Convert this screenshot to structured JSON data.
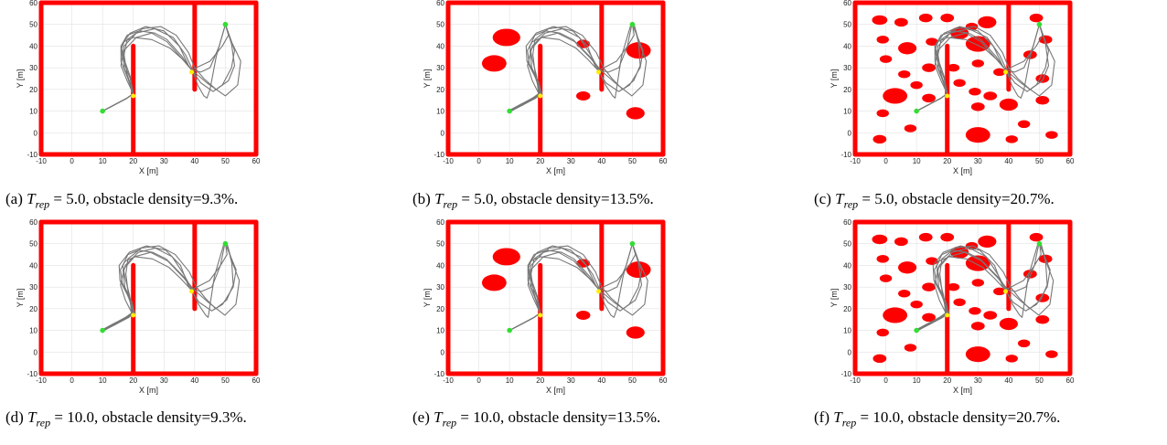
{
  "figure": {
    "panels": [
      {
        "caption_label": "(a)",
        "caption_var": "T",
        "caption_sub": "rep",
        "caption_value": "= 5.0",
        "caption_rest": ", obstacle density=9.3%.",
        "trajectories": 6
      },
      {
        "caption_label": "(b)",
        "caption_var": "T",
        "caption_sub": "rep",
        "caption_value": "= 5.0",
        "caption_rest": ", obstacle density=13.5%.",
        "trajectories": 6
      },
      {
        "caption_label": "(c)",
        "caption_var": "T",
        "caption_sub": "rep",
        "caption_value": "= 5.0",
        "caption_rest": ", obstacle density=20.7%.",
        "trajectories": 6
      },
      {
        "caption_label": "(d)",
        "caption_var": "T",
        "caption_sub": "rep",
        "caption_value": "= 10.0",
        "caption_rest": ", obstacle density=9.3%.",
        "trajectories": 6
      },
      {
        "caption_label": "(e)",
        "caption_var": "T",
        "caption_sub": "rep",
        "caption_value": "= 10.0",
        "caption_rest": ", obstacle density=13.5%.",
        "trajectories": 6
      },
      {
        "caption_label": "(f)",
        "caption_var": "T",
        "caption_sub": "rep",
        "caption_value": "= 10.0",
        "caption_rest": ", obstacle density=20.7%.",
        "trajectories": 6
      }
    ]
  },
  "chart_data": {
    "type": "scatter",
    "xlabel": "X [m]",
    "ylabel": "Y [m]",
    "xlim": [
      -10,
      60
    ],
    "ylim": [
      -10,
      60
    ],
    "xticks": [
      -10,
      0,
      10,
      20,
      30,
      40,
      50,
      60
    ],
    "yticks": [
      -10,
      0,
      10,
      20,
      30,
      40,
      50,
      60
    ],
    "grid": true,
    "colors": {
      "walls": "#ff0000",
      "obstacles": "#ff0000",
      "trajectory": "#777777",
      "start_goal": "#33dd33",
      "waypoints": "#ffee00"
    },
    "start": [
      10,
      10
    ],
    "goal": [
      50,
      50
    ],
    "waypoints": [
      [
        20,
        17
      ],
      [
        39,
        28
      ]
    ],
    "walls": [
      [
        -10,
        -10,
        60,
        -10
      ],
      [
        -10,
        -10,
        -10,
        60
      ],
      [
        -10,
        60,
        60,
        60
      ],
      [
        60,
        -10,
        60,
        60
      ],
      [
        20,
        -10,
        20,
        40
      ],
      [
        40,
        20,
        40,
        60
      ]
    ],
    "obstacle_sets": {
      "d9_3": [],
      "d13_5": [
        [
          9,
          44,
          4.5,
          4
        ],
        [
          5,
          32,
          4,
          3.8
        ],
        [
          34,
          41,
          2.2,
          2
        ],
        [
          34,
          17,
          2.3,
          2.1
        ],
        [
          51,
          9,
          3,
          2.8
        ],
        [
          52,
          38,
          4,
          3.8
        ]
      ],
      "d20_7": [
        [
          -2,
          52,
          2.5,
          2.2
        ],
        [
          5,
          51,
          2.2,
          2
        ],
        [
          13,
          53,
          2.2,
          2
        ],
        [
          20,
          53,
          2.2,
          2
        ],
        [
          28,
          49,
          2,
          1.8
        ],
        [
          33,
          51,
          3,
          2.8
        ],
        [
          49,
          53,
          2.2,
          2
        ],
        [
          -1,
          43,
          2,
          1.8
        ],
        [
          7,
          39,
          3,
          2.8
        ],
        [
          15,
          42,
          2,
          1.8
        ],
        [
          24,
          46,
          3,
          2.8
        ],
        [
          30,
          41,
          4,
          3.6
        ],
        [
          52,
          43,
          2.2,
          2
        ],
        [
          0,
          34,
          2,
          1.8
        ],
        [
          14,
          30,
          2.2,
          2
        ],
        [
          22,
          30,
          2,
          1.8
        ],
        [
          30,
          32,
          2,
          1.8
        ],
        [
          37,
          28,
          2,
          1.8
        ],
        [
          47,
          36,
          2.2,
          2
        ],
        [
          51,
          25,
          2.2,
          2
        ],
        [
          6,
          27,
          2,
          1.8
        ],
        [
          3,
          17,
          4,
          3.6
        ],
        [
          14,
          16,
          2.2,
          2
        ],
        [
          24,
          23,
          2,
          1.8
        ],
        [
          29,
          19,
          2,
          1.8
        ],
        [
          34,
          17,
          2.2,
          2
        ],
        [
          40,
          13,
          3,
          2.8
        ],
        [
          51,
          15,
          2.2,
          2
        ],
        [
          -1,
          9,
          2,
          1.8
        ],
        [
          30,
          12,
          2.2,
          2
        ],
        [
          45,
          4,
          2,
          1.8
        ],
        [
          8,
          2,
          2,
          1.8
        ],
        [
          -2,
          -3,
          2.2,
          2
        ],
        [
          30,
          -1,
          4,
          3.6
        ],
        [
          41,
          -3,
          2,
          1.8
        ],
        [
          54,
          -1,
          2,
          1.8
        ],
        [
          10,
          22,
          2,
          1.8
        ]
      ]
    },
    "panels": [
      {
        "panel": "a",
        "obstacles": "d9_3"
      },
      {
        "panel": "b",
        "obstacles": "d13_5"
      },
      {
        "panel": "c",
        "obstacles": "d20_7"
      },
      {
        "panel": "d",
        "obstacles": "d9_3"
      },
      {
        "panel": "e",
        "obstacles": "d13_5"
      },
      {
        "panel": "f",
        "obstacles": "d20_7"
      }
    ],
    "series": [
      {
        "x": [
          10,
          14,
          18,
          20,
          19,
          17,
          16,
          17,
          20,
          26,
          32,
          36,
          39,
          42,
          45,
          48,
          50
        ],
        "y": [
          10,
          13,
          16,
          18,
          25,
          32,
          38,
          42,
          44,
          43,
          39,
          34,
          29,
          28,
          30,
          40,
          50
        ]
      },
      {
        "x": [
          10,
          14,
          18,
          20,
          18,
          16,
          17,
          21,
          27,
          33,
          37,
          39,
          41,
          43,
          44,
          45,
          47,
          50
        ],
        "y": [
          10,
          13,
          16,
          18,
          24,
          31,
          40,
          46,
          48,
          44,
          36,
          30,
          22,
          17,
          16,
          20,
          35,
          50
        ]
      },
      {
        "x": [
          10,
          14,
          18,
          20,
          19,
          17,
          16,
          18,
          22,
          27,
          31,
          36,
          39,
          44,
          50,
          54,
          55,
          52,
          50
        ],
        "y": [
          10,
          13,
          16,
          18,
          26,
          34,
          40,
          45,
          47,
          46,
          43,
          35,
          29,
          23,
          17,
          22,
          33,
          42,
          50
        ]
      },
      {
        "x": [
          10,
          14,
          18,
          20,
          18,
          17,
          18,
          23,
          29,
          34,
          38,
          40,
          43,
          47,
          51,
          53,
          52,
          50
        ],
        "y": [
          10,
          13,
          16,
          18,
          27,
          36,
          43,
          48,
          49,
          45,
          37,
          30,
          25,
          20,
          24,
          31,
          41,
          50
        ]
      },
      {
        "x": [
          10,
          14,
          18,
          20,
          19,
          17,
          17,
          21,
          26,
          31,
          36,
          39,
          45,
          49,
          51,
          50
        ],
        "y": [
          10,
          13,
          16,
          18,
          23,
          30,
          38,
          44,
          46,
          42,
          34,
          29,
          33,
          40,
          45,
          50
        ]
      },
      {
        "x": [
          10,
          14,
          18,
          20,
          18,
          16,
          16,
          19,
          24,
          30,
          35,
          38,
          42,
          46,
          49,
          52,
          53,
          50
        ],
        "y": [
          10,
          13,
          16,
          18,
          26,
          33,
          40,
          46,
          49,
          47,
          40,
          31,
          23,
          19,
          22,
          30,
          38,
          50
        ]
      }
    ]
  }
}
